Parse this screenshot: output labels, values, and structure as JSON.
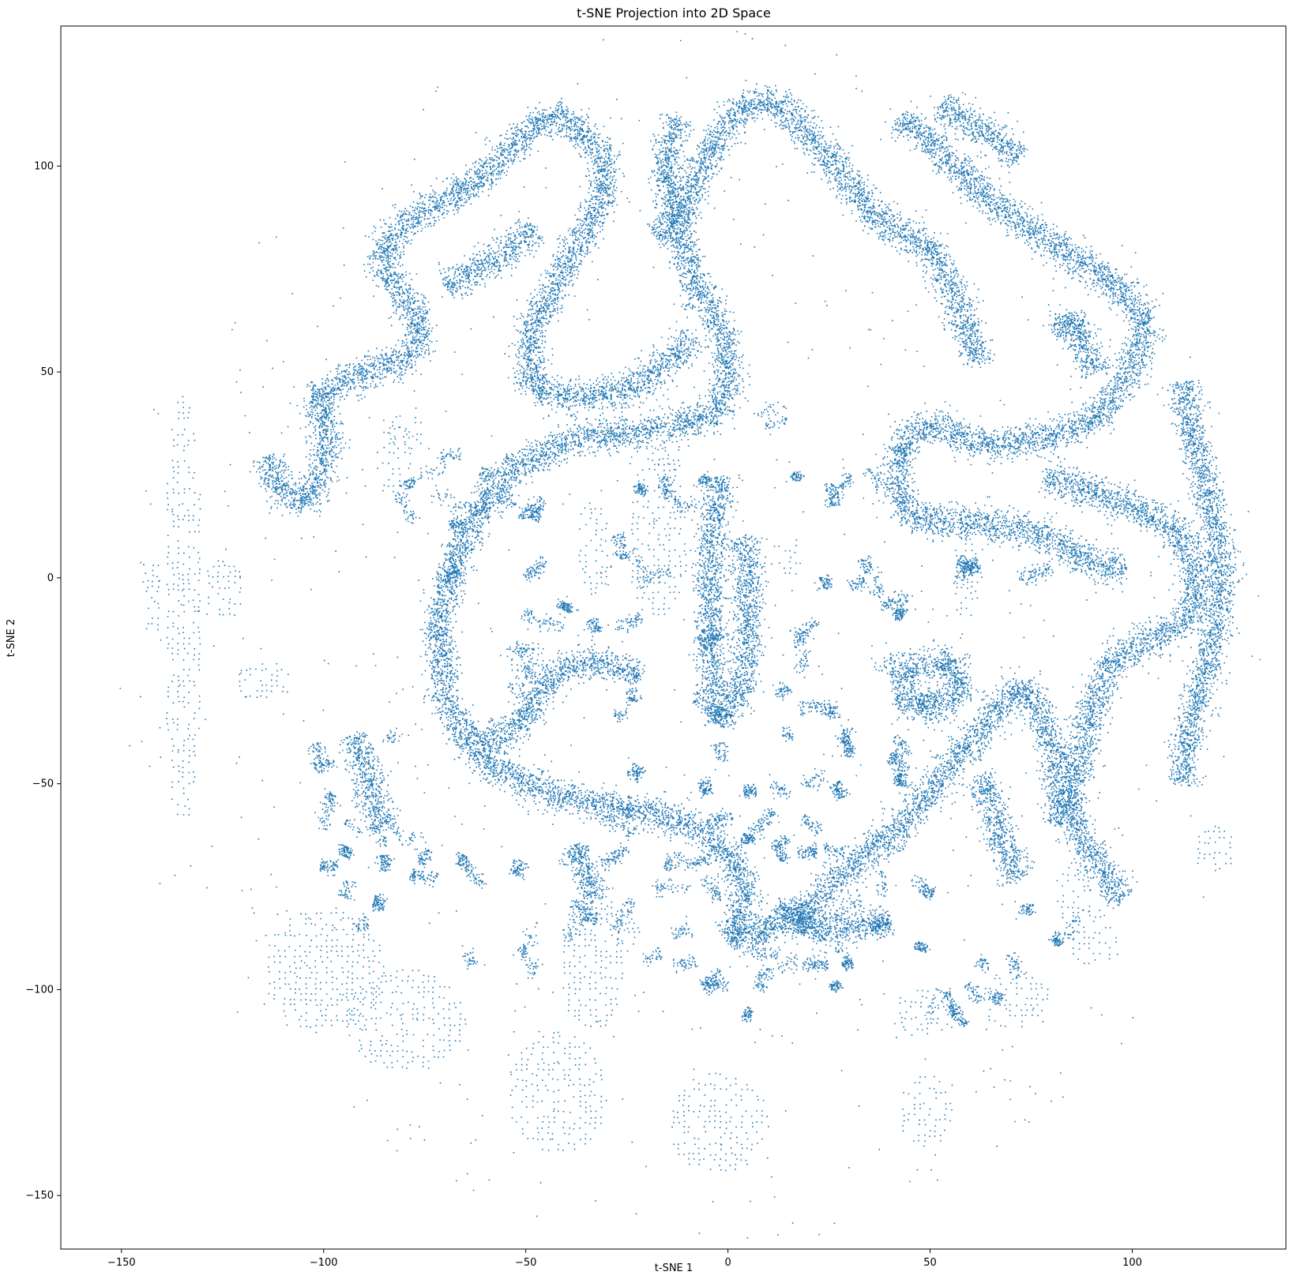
{
  "chart_data": {
    "type": "scatter",
    "title": "t-SNE Projection into 2D Space",
    "xlabel": "t-SNE 1",
    "ylabel": "t-SNE 2",
    "xlim": [
      -165,
      138
    ],
    "ylim": [
      -163,
      134
    ],
    "x_ticks": [
      -150,
      -100,
      -50,
      0,
      50,
      100
    ],
    "x_tick_labels": [
      "−150",
      "−100",
      "−50",
      "0",
      "50",
      "100"
    ],
    "y_ticks": [
      -150,
      -100,
      -50,
      0,
      50,
      100
    ],
    "y_tick_labels": [
      "−150",
      "−100",
      "−50",
      "0",
      "50",
      "100"
    ],
    "grid": false,
    "legend": "none",
    "point_color": "#1f77b4",
    "series": [
      {
        "approximate_point_count": 30000,
        "dense_paths": [
          [
            [
              -113,
              30
            ],
            [
              -112,
              22
            ],
            [
              -105,
              18
            ],
            [
              -101,
              24
            ],
            [
              -99,
              36
            ],
            [
              -103,
              44
            ],
            [
              -93,
              49
            ],
            [
              -78,
              54
            ],
            [
              -76,
              62
            ],
            [
              -84,
              73
            ],
            [
              -86,
              80
            ],
            [
              -78,
              88
            ],
            [
              -63,
              96
            ],
            [
              -52,
              106
            ],
            [
              -44,
              113
            ],
            [
              -36,
              109
            ],
            [
              -30,
              100
            ]
          ],
          [
            [
              -30,
              100
            ],
            [
              -33,
              88
            ],
            [
              -42,
              73
            ],
            [
              -50,
              58
            ],
            [
              -48,
              45
            ],
            [
              -37,
              44
            ],
            [
              -24,
              46
            ],
            [
              -15,
              52
            ],
            [
              -9,
              59
            ]
          ],
          [
            [
              -70,
              71
            ],
            [
              -55,
              79
            ],
            [
              -48,
              85
            ]
          ],
          [
            [
              -12,
              112
            ],
            [
              -16,
              100
            ],
            [
              -12,
              84
            ],
            [
              -8,
              70
            ],
            [
              -2,
              62
            ],
            [
              0,
              52
            ],
            [
              -2,
              40
            ],
            [
              -18,
              36
            ],
            [
              -38,
              34
            ],
            [
              -55,
              26
            ],
            [
              -65,
              10
            ],
            [
              -72,
              -10
            ],
            [
              -70,
              -30
            ],
            [
              -60,
              -45
            ],
            [
              -45,
              -52
            ],
            [
              -25,
              -56
            ],
            [
              -8,
              -60
            ],
            [
              3,
              -70
            ],
            [
              4,
              -80
            ],
            [
              0,
              -87
            ]
          ],
          [
            [
              -18,
              83
            ],
            [
              -12,
              87
            ],
            [
              -5,
              103
            ],
            [
              3,
              115
            ],
            [
              12,
              116
            ],
            [
              20,
              108
            ],
            [
              28,
              98
            ],
            [
              38,
              86
            ],
            [
              48,
              82
            ],
            [
              55,
              72
            ],
            [
              60,
              58
            ],
            [
              62,
              52
            ]
          ],
          [
            [
              42,
              112
            ],
            [
              50,
              106
            ],
            [
              60,
              96
            ],
            [
              70,
              88
            ],
            [
              82,
              80
            ],
            [
              95,
              72
            ],
            [
              104,
              62
            ]
          ],
          [
            [
              104,
              62
            ],
            [
              98,
              48
            ],
            [
              90,
              38
            ],
            [
              78,
              34
            ],
            [
              63,
              32
            ],
            [
              50,
              38
            ],
            [
              42,
              32
            ],
            [
              42,
              18
            ],
            [
              48,
              14
            ],
            [
              60,
              14
            ],
            [
              70,
              12
            ],
            [
              80,
              10
            ],
            [
              88,
              4
            ],
            [
              98,
              2
            ]
          ],
          [
            [
              52,
              115
            ],
            [
              62,
              110
            ],
            [
              72,
              102
            ]
          ],
          [
            [
              81,
              59
            ],
            [
              85,
              64
            ],
            [
              88,
              56
            ],
            [
              91,
              50
            ]
          ],
          [
            [
              78,
              25
            ],
            [
              98,
              18
            ],
            [
              108,
              14
            ],
            [
              112,
              10
            ],
            [
              116,
              0
            ],
            [
              114,
              -10
            ],
            [
              106,
              -14
            ],
            [
              95,
              -20
            ],
            [
              90,
              -30
            ],
            [
              88,
              -42
            ],
            [
              85,
              -50
            ],
            [
              85,
              -60
            ],
            [
              92,
              -70
            ],
            [
              98,
              -78
            ]
          ],
          [
            [
              112,
              48
            ],
            [
              114,
              38
            ],
            [
              117,
              26
            ],
            [
              120,
              14
            ],
            [
              122,
              4
            ],
            [
              121,
              -10
            ],
            [
              117,
              -26
            ],
            [
              113,
              -40
            ],
            [
              112,
              -50
            ]
          ],
          [
            [
              -2,
              25
            ],
            [
              -4,
              10
            ],
            [
              -5,
              -5
            ],
            [
              -4,
              -20
            ],
            [
              -3,
              -35
            ],
            [
              3,
              -28
            ],
            [
              5,
              -15
            ],
            [
              5,
              -5
            ],
            [
              4,
              10
            ]
          ],
          [
            [
              0,
              -88
            ],
            [
              20,
              -80
            ],
            [
              30,
              -70
            ],
            [
              45,
              -58
            ],
            [
              55,
              -45
            ],
            [
              62,
              -38
            ],
            [
              68,
              -30
            ],
            [
              73,
              -26
            ],
            [
              76,
              -30
            ],
            [
              80,
              -40
            ],
            [
              82,
              -50
            ],
            [
              82,
              -60
            ]
          ],
          [
            [
              12,
              -80
            ],
            [
              20,
              -85
            ],
            [
              30,
              -85
            ],
            [
              40,
              -83
            ]
          ],
          [
            [
              40,
              -25
            ],
            [
              45,
              -22
            ],
            [
              55,
              -20
            ],
            [
              58,
              -25
            ],
            [
              56,
              -30
            ],
            [
              48,
              -32
            ],
            [
              42,
              -28
            ]
          ],
          [
            [
              62,
              -48
            ],
            [
              65,
              -55
            ],
            [
              68,
              -65
            ],
            [
              72,
              -73
            ]
          ],
          [
            [
              -93,
              -38
            ],
            [
              -90,
              -45
            ],
            [
              -88,
              -55
            ],
            [
              -85,
              -60
            ]
          ],
          [
            [
              -62,
              -40
            ],
            [
              -50,
              -35
            ],
            [
              -48,
              -28
            ],
            [
              -42,
              -22
            ],
            [
              -32,
              -20
            ],
            [
              -22,
              -24
            ]
          ],
          [
            [
              -39,
              -65
            ],
            [
              -35,
              -72
            ],
            [
              -33,
              -78
            ]
          ]
        ],
        "sparse_regions": [
          [
            -145,
            -140,
            -15,
            5
          ],
          [
            -140,
            -130,
            -60,
            45
          ],
          [
            -115,
            -85,
            -110,
            -80
          ],
          [
            -95,
            -65,
            -120,
            -95
          ],
          [
            -55,
            -30,
            -140,
            -110
          ],
          [
            -15,
            10,
            -145,
            -120
          ],
          [
            -42,
            -25,
            -110,
            -75
          ],
          [
            -25,
            -10,
            -10,
            30
          ],
          [
            -38,
            -28,
            -5,
            20
          ],
          [
            42,
            56,
            -138,
            -120
          ],
          [
            40,
            55,
            -112,
            -100
          ],
          [
            62,
            80,
            -110,
            -95
          ],
          [
            -88,
            -78,
            20,
            40
          ],
          [
            -85,
            -75,
            30,
            40
          ],
          [
            -130,
            -120,
            -10,
            5
          ],
          [
            -122,
            -108,
            -30,
            -20
          ],
          [
            80,
            90,
            -85,
            -70
          ],
          [
            84,
            96,
            -95,
            -80
          ],
          [
            115,
            125,
            -72,
            -60
          ],
          [
            55,
            62,
            -10,
            10
          ],
          [
            -20,
            -12,
            25,
            32
          ],
          [
            10,
            18,
            0,
            10
          ],
          [
            -30,
            -22,
            -90,
            -80
          ],
          [
            -55,
            -45,
            -15,
            -25
          ]
        ],
        "medium_regions": [
          [
            -80,
            -60,
            -25,
            35
          ],
          [
            -105,
            -80,
            -75,
            -35
          ],
          [
            -95,
            -60,
            -100,
            -60
          ],
          [
            -55,
            -25,
            -100,
            -60
          ],
          [
            -25,
            15,
            -100,
            -40
          ],
          [
            15,
            40,
            -100,
            -65
          ],
          [
            -10,
            10,
            -110,
            -95
          ],
          [
            35,
            70,
            -110,
            -90
          ],
          [
            5,
            50,
            -30,
            5
          ],
          [
            20,
            55,
            -60,
            -30
          ],
          [
            -28,
            -5,
            -35,
            25
          ],
          [
            -55,
            -28,
            -35,
            20
          ],
          [
            50,
            80,
            -10,
            5
          ],
          [
            -5,
            20,
            -60,
            -45
          ],
          [
            8,
            38,
            20,
            45
          ],
          [
            10,
            35,
            -50,
            -35
          ],
          [
            25,
            55,
            -90,
            -60
          ],
          [
            70,
            95,
            -100,
            -80
          ]
        ]
      }
    ]
  }
}
